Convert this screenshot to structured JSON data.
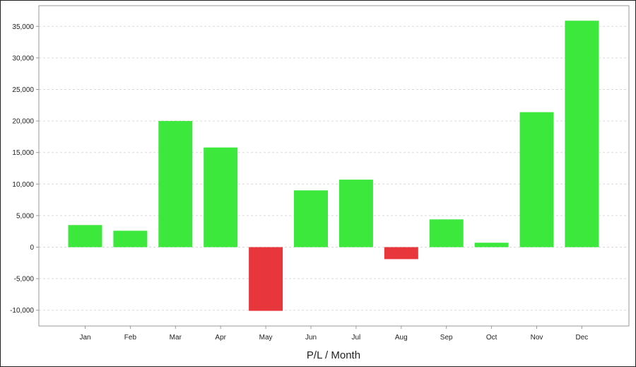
{
  "chart_data": {
    "type": "bar",
    "title": "",
    "xlabel": "P/L / Month",
    "ylabel": "",
    "categories": [
      "Jan",
      "Feb",
      "Mar",
      "Apr",
      "May",
      "Jun",
      "Jul",
      "Aug",
      "Sep",
      "Oct",
      "Nov",
      "Dec"
    ],
    "values": [
      3500,
      2600,
      20000,
      15800,
      -10100,
      9000,
      10700,
      -1900,
      4400,
      700,
      21400,
      35900
    ],
    "ylim": [
      -12500,
      38000
    ],
    "yticks": [
      -10000,
      -5000,
      0,
      5000,
      10000,
      15000,
      20000,
      25000,
      30000,
      35000
    ],
    "ytick_labels": [
      "-10,000",
      "-5,000",
      "0",
      "5,000",
      "10,000",
      "15,000",
      "20,000",
      "25,000",
      "30,000",
      "35,000"
    ],
    "grid": true,
    "legend": "none",
    "colors": {
      "positive": "#3de83d",
      "negative": "#e8373c",
      "grid": "#d9d9d9",
      "axis": "#999999"
    }
  }
}
